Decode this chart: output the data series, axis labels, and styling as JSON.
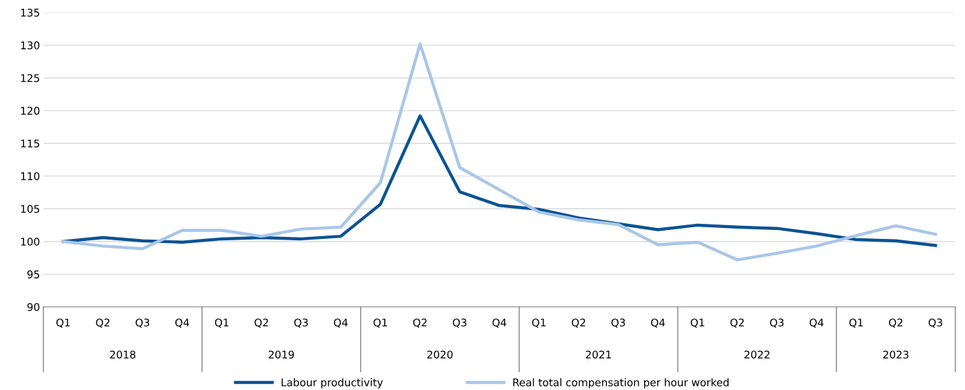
{
  "chart_data": {
    "type": "line",
    "categories": [
      "Q1",
      "Q2",
      "Q3",
      "Q4",
      "Q1",
      "Q2",
      "Q3",
      "Q4",
      "Q1",
      "Q2",
      "Q3",
      "Q4",
      "Q1",
      "Q2",
      "Q3",
      "Q4",
      "Q1",
      "Q2",
      "Q3",
      "Q4",
      "Q1",
      "Q2",
      "Q3"
    ],
    "series": [
      {
        "name": "Labour productivity",
        "color": "#0b5394",
        "values": [
          100,
          100.6,
          100.1,
          99.9,
          100.4,
          100.6,
          100.4,
          100.8,
          105.7,
          119.2,
          107.6,
          105.5,
          104.9,
          103.6,
          102.7,
          101.8,
          102.5,
          102.2,
          102.0,
          101.2,
          100.3,
          100.1,
          99.4
        ]
      },
      {
        "name": "Real total compensation per hour worked",
        "color": "#a9c6e8",
        "values": [
          100,
          99.3,
          98.9,
          101.7,
          101.7,
          100.8,
          101.9,
          102.2,
          109.0,
          130.2,
          111.3,
          107.9,
          104.5,
          103.3,
          102.6,
          99.5,
          99.9,
          97.2,
          98.2,
          99.3,
          100.9,
          102.4,
          101.1
        ]
      }
    ],
    "annotations": [
      "2018",
      "2019",
      "2020",
      "2021",
      "2022",
      "2023"
    ],
    "ylim": [
      90,
      135
    ],
    "yticks": [
      90,
      95,
      100,
      105,
      110,
      115,
      120,
      125,
      130,
      135
    ],
    "grid": "y",
    "legend": "bottom",
    "marker": "none",
    "line_style": "solid"
  }
}
